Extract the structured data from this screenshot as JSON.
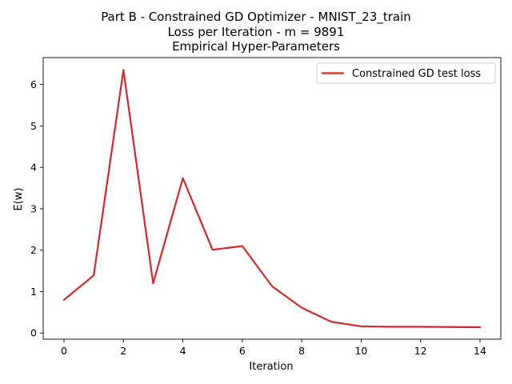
{
  "chart_data": {
    "type": "line",
    "title_lines": [
      "Part B - Constrained GD Optimizer - MNIST_23_train",
      "Loss per Iteration - m = 9891",
      "Empirical Hyper-Parameters"
    ],
    "xlabel": "Iteration",
    "ylabel": "E(w)",
    "xlim": [
      -0.7,
      14.7
    ],
    "ylim": [
      -0.15,
      6.65
    ],
    "xticks": [
      0,
      2,
      4,
      6,
      8,
      10,
      12,
      14
    ],
    "yticks": [
      0,
      1,
      2,
      3,
      4,
      5,
      6
    ],
    "grid": false,
    "legend_position": "top-right",
    "series": [
      {
        "name": "Constrained GD test loss",
        "color": "#d62728",
        "x": [
          0,
          1,
          2,
          3,
          4,
          5,
          6,
          7,
          8,
          9,
          10,
          11,
          12,
          13,
          14
        ],
        "y": [
          0.8,
          1.39,
          6.35,
          1.2,
          3.74,
          2.01,
          2.1,
          1.13,
          0.61,
          0.27,
          0.16,
          0.15,
          0.15,
          0.145,
          0.14
        ]
      }
    ]
  }
}
